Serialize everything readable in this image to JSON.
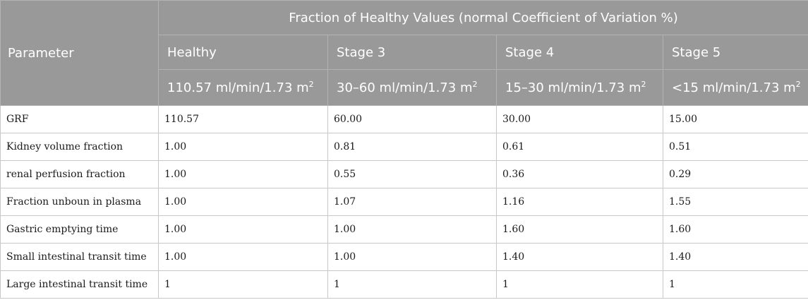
{
  "header": {
    "parameter_label": "Parameter",
    "group_label": "Fraction of Healthy Values (normal Coefficient of Variation %)",
    "stages": [
      {
        "name": "Healthy",
        "gfr": "110.57 ml/min/1.73 m",
        "sup": "2"
      },
      {
        "name": "Stage 3",
        "gfr": "30–60 ml/min/1.73 m",
        "sup": "2"
      },
      {
        "name": "Stage 4",
        "gfr": "15–30 ml/min/1.73 m",
        "sup": "2"
      },
      {
        "name": "Stage 5",
        "gfr": "<15 ml/min/1.73 m",
        "sup": "2"
      }
    ]
  },
  "rows": [
    {
      "parameter": "GRF",
      "values": [
        "110.57",
        "60.00",
        "30.00",
        "15.00"
      ]
    },
    {
      "parameter": "Kidney volume fraction",
      "values": [
        "1.00",
        "0.81",
        "0.61",
        "0.51"
      ]
    },
    {
      "parameter": "renal perfusion fraction",
      "values": [
        "1.00",
        "0.55",
        "0.36",
        "0.29"
      ]
    },
    {
      "parameter": "Fraction unboun in plasma",
      "values": [
        "1.00",
        "1.07",
        "1.16",
        "1.55"
      ]
    },
    {
      "parameter": "Gastric emptying time",
      "values": [
        "1.00",
        "1.00",
        "1.60",
        "1.60"
      ]
    },
    {
      "parameter": "Small intestinal transit time",
      "values": [
        "1.00",
        "1.00",
        "1.40",
        "1.40"
      ]
    },
    {
      "parameter": "Large intestinal transit time",
      "values": [
        "1",
        "1",
        "1",
        "1"
      ]
    }
  ]
}
